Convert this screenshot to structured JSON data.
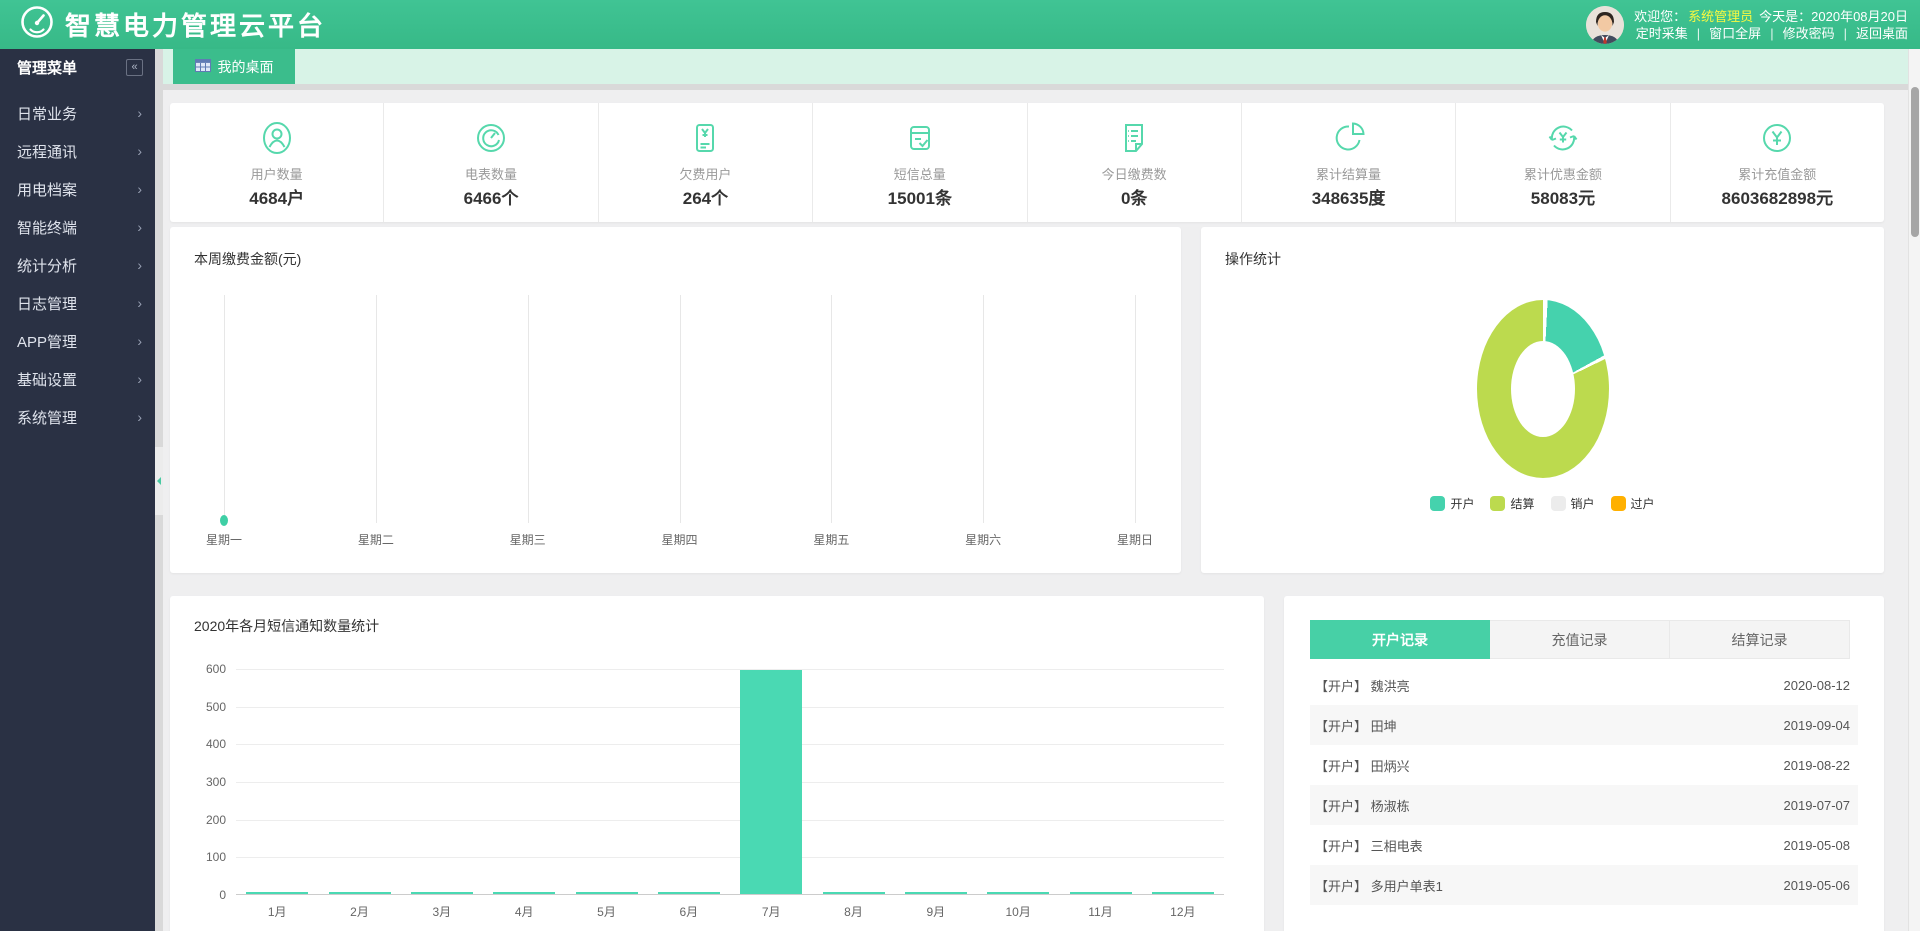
{
  "header": {
    "app_title": "智慧电力管理云平台",
    "welcome_prefix": "欢迎您：",
    "username": "系统管理员",
    "date_label": "今天是：2020年08月20日",
    "links": [
      "定时采集",
      "窗口全屏",
      "修改密码",
      "返回桌面"
    ],
    "link_separator": "|"
  },
  "sidebar": {
    "title": "管理菜单",
    "collapse_icon": "«",
    "items": [
      {
        "label": "日常业务"
      },
      {
        "label": "远程通讯"
      },
      {
        "label": "用电档案"
      },
      {
        "label": "智能终端"
      },
      {
        "label": "统计分析"
      },
      {
        "label": "日志管理"
      },
      {
        "label": "APP管理"
      },
      {
        "label": "基础设置"
      },
      {
        "label": "系统管理"
      }
    ]
  },
  "tabs": {
    "desktop_tab": "我的桌面"
  },
  "stats": [
    {
      "icon": "user-icon",
      "label": "用户数量",
      "value": "4684户"
    },
    {
      "icon": "meter-icon",
      "label": "电表数量",
      "value": "6466个"
    },
    {
      "icon": "arrears-icon",
      "label": "欠费用户",
      "value": "264个"
    },
    {
      "icon": "sms-icon",
      "label": "短信总量",
      "value": "15001条"
    },
    {
      "icon": "payment-icon",
      "label": "今日缴费数",
      "value": "0条"
    },
    {
      "icon": "pie-icon",
      "label": "累计结算量",
      "value": "348635度"
    },
    {
      "icon": "discount-icon",
      "label": "累计优惠金额",
      "value": "58083元"
    },
    {
      "icon": "recharge-icon",
      "label": "累计充值金额",
      "value": "8603682898元"
    }
  ],
  "chart_data": [
    {
      "type": "line",
      "title": "本周缴费金额(元)",
      "categories": [
        "星期一",
        "星期二",
        "星期三",
        "星期四",
        "星期五",
        "星期六",
        "星期日"
      ],
      "values": [
        0,
        0,
        0,
        0,
        0,
        0,
        0
      ],
      "marker_indices": [
        0
      ],
      "marker_color": "#3ecfa5",
      "grid": "vertical-gridlines-only"
    },
    {
      "type": "pie",
      "title": "操作统计",
      "legend_position": "bottom",
      "slices": [
        {
          "name": "开户",
          "value": 17,
          "color": "#45d2ad"
        },
        {
          "name": "结算",
          "value": 83,
          "color": "#bcda4e"
        },
        {
          "name": "销户",
          "value": 0,
          "color": "#ececec"
        },
        {
          "name": "过户",
          "value": 0,
          "color": "#ffb000"
        }
      ],
      "unit": "percent (estimated from arc angles)"
    },
    {
      "type": "bar",
      "title": "2020年各月短信通知数量统计",
      "categories": [
        "1月",
        "2月",
        "3月",
        "4月",
        "5月",
        "6月",
        "7月",
        "8月",
        "9月",
        "10月",
        "11月",
        "12月"
      ],
      "values": [
        5,
        5,
        5,
        5,
        5,
        5,
        595,
        5,
        5,
        5,
        5,
        5
      ],
      "ylim": [
        0,
        600
      ],
      "yticks": [
        0,
        100,
        200,
        300,
        400,
        500,
        600
      ],
      "bar_color": "#4ad9b3",
      "grid": "horizontal"
    }
  ],
  "records": {
    "tabs": [
      "开户记录",
      "充值记录",
      "结算记录"
    ],
    "active_tab": "开户记录",
    "rows": [
      {
        "prefix": "【开户】",
        "name": "魏洪亮",
        "date": "2020-08-12"
      },
      {
        "prefix": "【开户】",
        "name": "田坤",
        "date": "2019-09-04"
      },
      {
        "prefix": "【开户】",
        "name": "田炳兴",
        "date": "2019-08-22"
      },
      {
        "prefix": "【开户】",
        "name": "杨淑栋",
        "date": "2019-07-07"
      },
      {
        "prefix": "【开户】",
        "name": "三相电表",
        "date": "2019-05-08"
      },
      {
        "prefix": "【开户】",
        "name": "多用户单表1",
        "date": "2019-05-06"
      }
    ]
  },
  "colors": {
    "header_green": "#3bbd8c",
    "tabstrip_mint": "#d8f3e7",
    "sidebar_navy": "#2a3144",
    "accent_teal": "#45d2ad",
    "chart_green": "#bcda4e",
    "orange": "#ffb000",
    "username_yellow": "#f8f941",
    "stat_icon_teal": "#56d8ac"
  }
}
